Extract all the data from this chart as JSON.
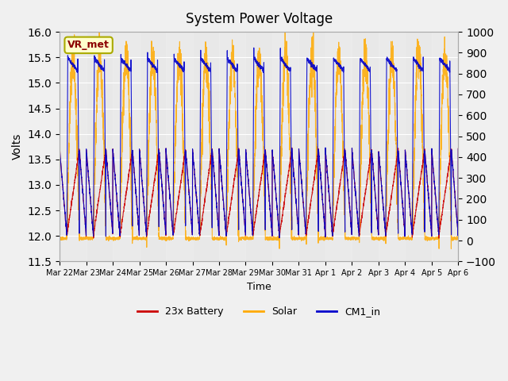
{
  "title": "System Power Voltage",
  "xlabel": "Time",
  "ylabel_left": "Volts",
  "ylim_left": [
    11.5,
    16.0
  ],
  "ylim_right": [
    -100,
    1000
  ],
  "yticks_left": [
    11.5,
    12.0,
    12.5,
    13.0,
    13.5,
    14.0,
    14.5,
    15.0,
    15.5,
    16.0
  ],
  "yticks_right": [
    -100,
    0,
    100,
    200,
    300,
    400,
    500,
    600,
    700,
    800,
    900,
    1000
  ],
  "xticklabels": [
    "Mar 22",
    "Mar 23",
    "Mar 24",
    "Mar 25",
    "Mar 26",
    "Mar 27",
    "Mar 28",
    "Mar 29",
    "Mar 30",
    "Mar 31",
    "Apr 1",
    "Apr 2",
    "Apr 3",
    "Apr 4",
    "Apr 5",
    "Apr 6"
  ],
  "legend_labels": [
    "23x Battery",
    "Solar",
    "CM1_in"
  ],
  "legend_colors": [
    "#cc0000",
    "#ffaa00",
    "#0000cc"
  ],
  "annotation_text": "VR_met",
  "annotation_color": "#8b0000",
  "annotation_bg": "#ffffcc",
  "annotation_border": "#aaaa00",
  "battery_color": "#cc0000",
  "solar_color": "#ffaa00",
  "cm1_color": "#0000cc",
  "bg_color": "#f0f0f0",
  "plot_bg": "#e8e8e8",
  "num_days": 15,
  "seed": 42
}
